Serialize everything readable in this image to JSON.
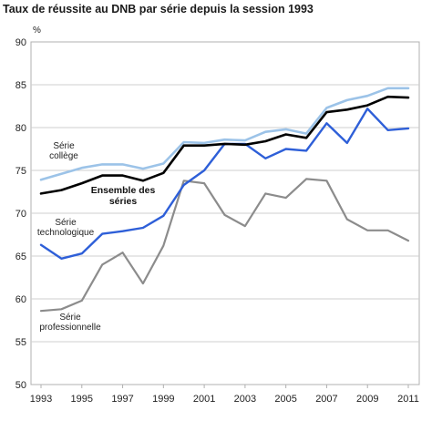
{
  "chart_data": {
    "type": "line",
    "title": "Taux de réussite au DNB par série depuis la session 1993",
    "ylabel": "%",
    "xlabel": "",
    "xlim": [
      1993,
      2011
    ],
    "ylim": [
      50,
      90
    ],
    "yticks": [
      50,
      55,
      60,
      65,
      70,
      75,
      80,
      85,
      90
    ],
    "xticks": [
      1993,
      1995,
      1997,
      1999,
      2001,
      2003,
      2005,
      2007,
      2009,
      2011
    ],
    "grid": "horizontal",
    "x": [
      1993,
      1994,
      1995,
      1996,
      1997,
      1998,
      1999,
      2000,
      2001,
      2002,
      2003,
      2004,
      2005,
      2006,
      2007,
      2008,
      2009,
      2010,
      2011
    ],
    "series": [
      {
        "name": "Série collège",
        "label_lines": [
          "Série",
          "collège"
        ],
        "color": "#9cc3e8",
        "values": [
          73.9,
          74.6,
          75.3,
          75.7,
          75.7,
          75.2,
          75.8,
          78.3,
          78.2,
          78.6,
          78.5,
          79.5,
          79.8,
          79.3,
          82.3,
          83.2,
          83.7,
          84.6,
          84.6
        ]
      },
      {
        "name": "Ensemble des séries",
        "label_lines": [
          "Ensemble des",
          "séries"
        ],
        "color": "#000000",
        "values": [
          72.3,
          72.7,
          73.5,
          74.4,
          74.4,
          73.8,
          74.7,
          77.9,
          77.9,
          78.1,
          78.0,
          78.4,
          79.2,
          78.8,
          81.8,
          82.1,
          82.6,
          83.6,
          83.5
        ]
      },
      {
        "name": "Série technologique",
        "label_lines": [
          "Série",
          "technologique"
        ],
        "color": "#2e5fd8",
        "values": [
          66.3,
          64.7,
          65.3,
          67.6,
          67.9,
          68.3,
          69.7,
          73.3,
          75.0,
          78.1,
          78.1,
          76.4,
          77.5,
          77.3,
          80.5,
          78.2,
          82.2,
          79.7,
          79.9
        ]
      },
      {
        "name": "Série professionnelle",
        "label_lines": [
          "Série",
          "professionnelle"
        ],
        "color": "#8c8c8c",
        "values": [
          58.6,
          58.8,
          59.8,
          64.0,
          65.4,
          61.8,
          66.2,
          73.8,
          73.5,
          69.8,
          68.5,
          72.3,
          71.8,
          74.0,
          73.8,
          69.3,
          68.0,
          68.0,
          66.8
        ]
      }
    ]
  }
}
